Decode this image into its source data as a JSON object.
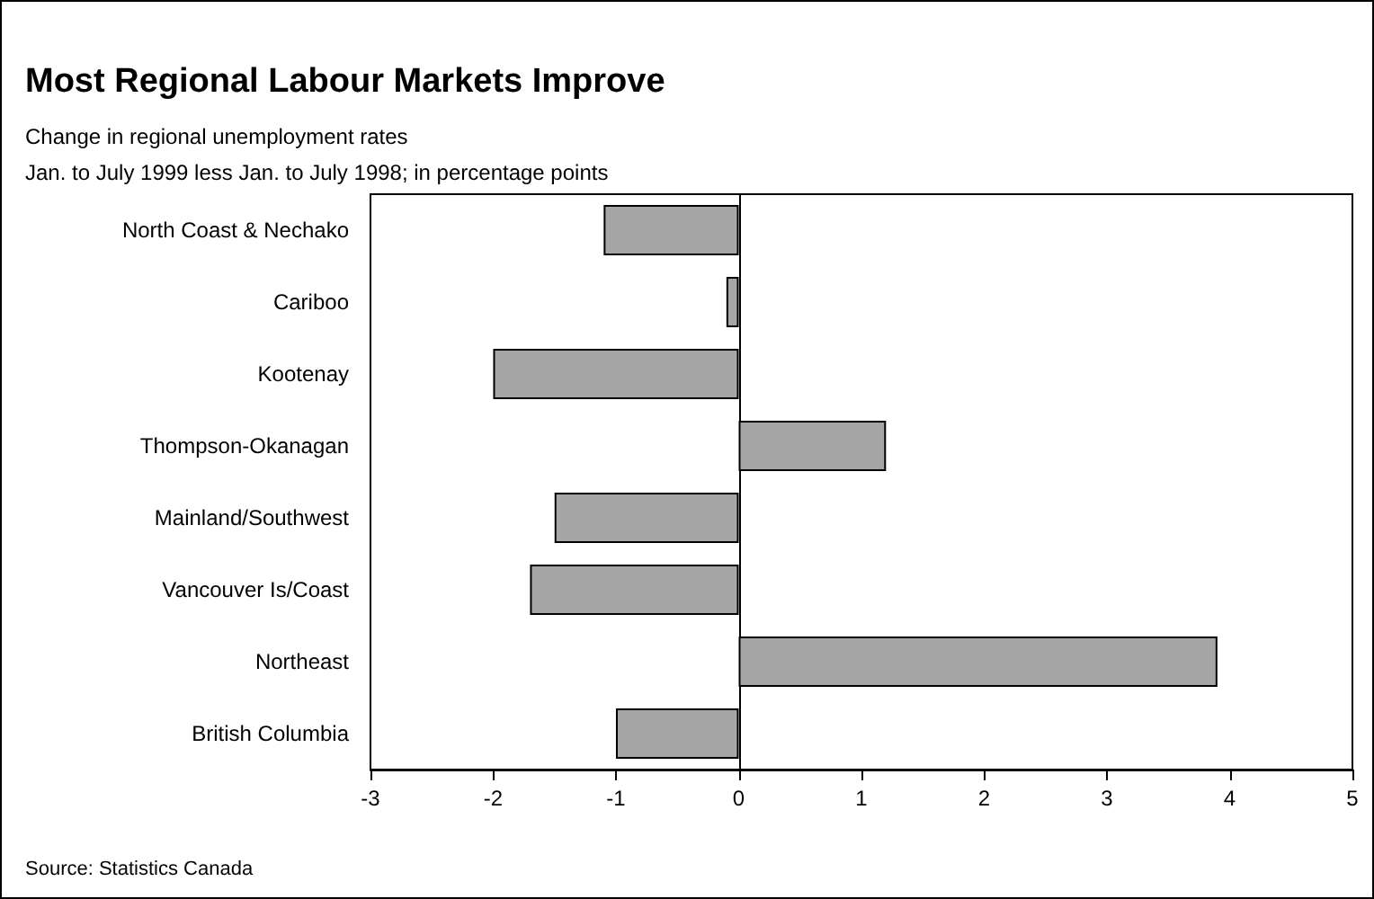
{
  "chart_data": {
    "type": "bar",
    "orientation": "horizontal",
    "title": "Most Regional Labour Markets Improve",
    "subtitle": "Change in regional unemployment rates\nJan. to July 1999 less Jan. to July 1998; in percentage points",
    "categories": [
      "North Coast & Nechako",
      "Cariboo",
      "Kootenay",
      "Thompson-Okanagan",
      "Mainland/Southwest",
      "Vancouver Is/Coast",
      "Northeast",
      "British Columbia"
    ],
    "values": [
      -1.1,
      -0.1,
      -2.0,
      1.2,
      -1.5,
      -1.7,
      3.9,
      -1.0
    ],
    "color": "#a6a6a6",
    "xlim": [
      -3,
      5
    ],
    "xticks": [
      -3,
      -2,
      -1,
      0,
      1,
      2,
      3,
      4,
      5
    ],
    "annotations": [
      "Source: Statistics Canada"
    ]
  }
}
